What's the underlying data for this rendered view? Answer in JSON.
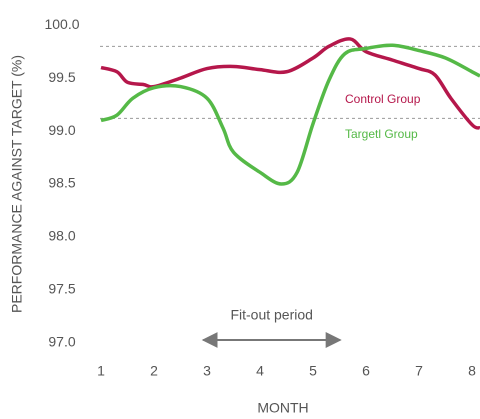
{
  "chart_data": {
    "type": "line",
    "xlabel": "MONTH",
    "ylabel": "PERFORMANCE AGAINST TARGET (%)",
    "xlim": [
      0.5,
      8.15
    ],
    "xticks": [
      1,
      2,
      3,
      4,
      5,
      6,
      7,
      8
    ],
    "ylim": [
      96.8,
      100.2
    ],
    "yticks": [
      {
        "value": 100,
        "label": "100.0"
      },
      99.5,
      {
        "value": 99,
        "label": "99.0"
      },
      98.5,
      {
        "value": 98,
        "label": "98.0"
      },
      97.5,
      {
        "value": 97,
        "label": "97.0"
      }
    ],
    "reference_lines": [
      99.8,
      99.12
    ],
    "series": [
      {
        "name": "Control Group",
        "color": "#b5174b",
        "x": [
          1,
          1.3,
          1.5,
          1.8,
          2,
          2.5,
          3,
          3.5,
          4,
          4.5,
          5,
          5.3,
          5.7,
          6,
          6.5,
          7,
          7.3,
          7.6,
          8,
          8.15
        ],
        "values": [
          99.6,
          99.56,
          99.46,
          99.44,
          99.42,
          99.5,
          99.59,
          99.61,
          99.58,
          99.56,
          99.69,
          99.8,
          99.87,
          99.75,
          99.67,
          99.59,
          99.53,
          99.31,
          99.06,
          99.03
        ]
      },
      {
        "name": "Targetl Group",
        "color": "#55b947",
        "x": [
          1,
          1.3,
          1.6,
          2,
          2.5,
          3,
          3.3,
          3.5,
          4,
          4.4,
          4.7,
          5,
          5.3,
          5.6,
          6,
          6.5,
          7,
          7.5,
          8,
          8.15
        ],
        "values": [
          99.1,
          99.15,
          99.31,
          99.41,
          99.42,
          99.31,
          99.03,
          98.8,
          98.61,
          98.5,
          98.61,
          99.07,
          99.48,
          99.73,
          99.78,
          99.81,
          99.76,
          99.69,
          99.56,
          99.52
        ]
      }
    ],
    "annotation": {
      "text": "Fit-out period",
      "x": [
        2.93,
        5.51
      ]
    }
  }
}
